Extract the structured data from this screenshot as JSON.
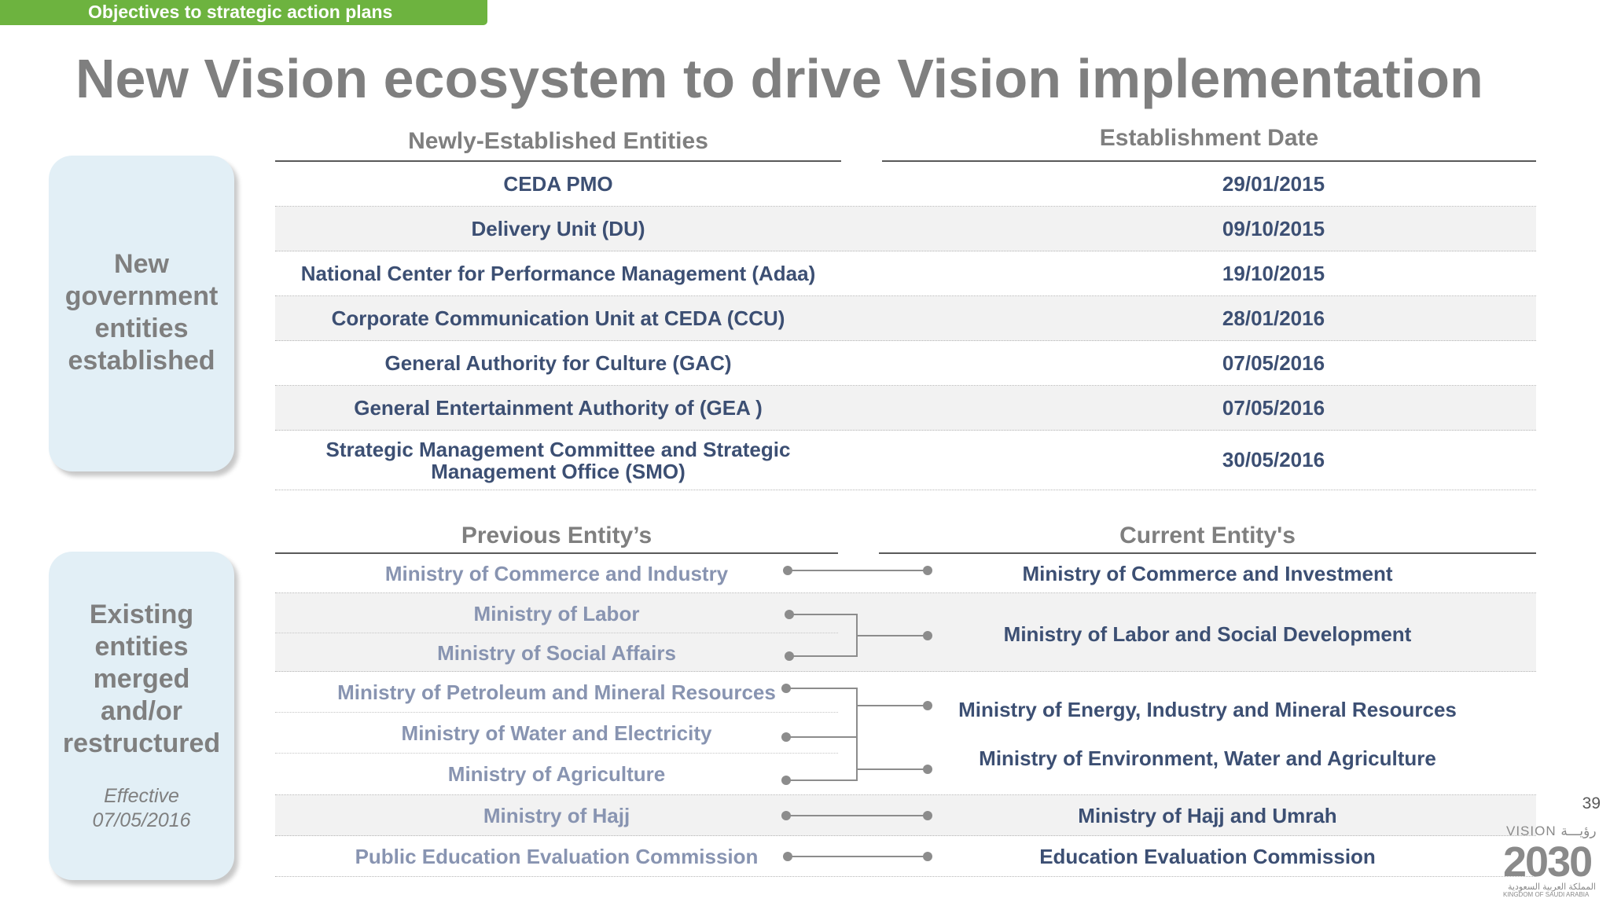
{
  "section_tag": "Objectives to strategic action plans",
  "title": "New Vision ecosystem to drive Vision implementation",
  "new_entities": {
    "side_label": "New\ngovernment\nentities\nestablished",
    "col_entity": "Newly-Established Entities",
    "col_date": "Establishment Date",
    "rows": [
      {
        "name": "CEDA PMO",
        "date": "29/01/2015"
      },
      {
        "name": "Delivery Unit (DU)",
        "date": "09/10/2015"
      },
      {
        "name": "National Center for Performance Management  (Adaa)",
        "date": "19/10/2015"
      },
      {
        "name": "Corporate Communication Unit at CEDA (CCU)",
        "date": "28/01/2016"
      },
      {
        "name": "General Authority for Culture (GAC)",
        "date": "07/05/2016"
      },
      {
        "name": "General Entertainment Authority of (GEA )",
        "date": "07/05/2016"
      },
      {
        "name": "Strategic Management Committee and Strategic\nManagement Office (SMO)",
        "date": "30/05/2016"
      }
    ]
  },
  "restructured": {
    "side_label": "Existing\nentities\nmerged\nand/or\nrestructured",
    "side_note": "Effective\n07/05/2016",
    "col_previous": "Previous Entity’s",
    "col_current": "Current Entity's",
    "previous": [
      "Ministry of Commerce and Industry",
      "Ministry of Labor",
      "Ministry of Social Affairs",
      "Ministry of Petroleum and Mineral Resources",
      "Ministry of Water and Electricity",
      "Ministry of Agriculture",
      "Ministry of Hajj",
      "Public Education Evaluation Commission"
    ],
    "current": [
      "Ministry of Commerce and Investment",
      "Ministry of Labor and Social Development",
      "Ministry of Energy, Industry and Mineral Resources",
      "Ministry of Environment,  Water and Agriculture",
      "Ministry of Hajj and Umrah",
      "Education Evaluation Commission"
    ]
  },
  "page_number": "39",
  "logo": {
    "top": "VISION رؤيـــة",
    "number": "2030",
    "arabic": "المملكة العربية السعودية",
    "sub": "KINGDOM OF SAUDI ARABIA"
  },
  "colors": {
    "accent_green": "#6db33f",
    "dark_text": "#3c4f73",
    "light_text": "#8894b1",
    "panel": "#e2eff6"
  }
}
